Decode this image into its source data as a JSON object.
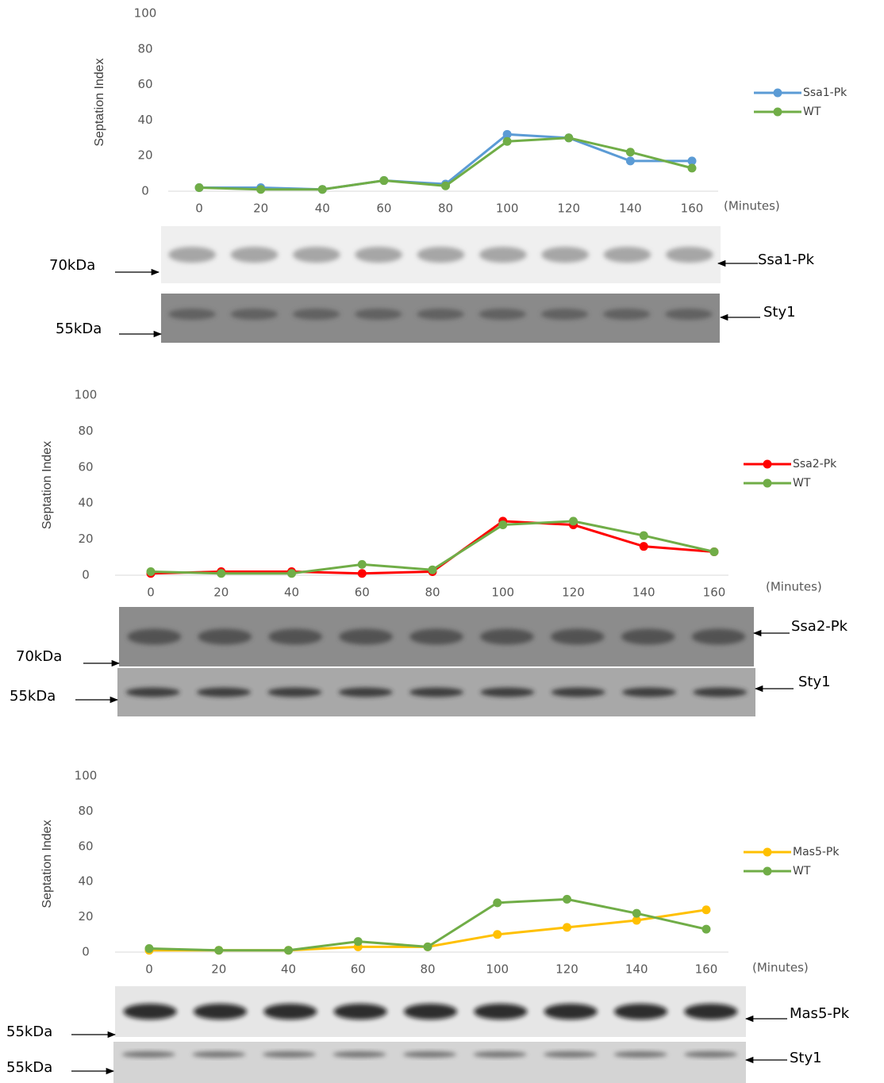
{
  "chart_data": [
    {
      "type": "line",
      "y_label": "Septation Index",
      "x_label": "(Minutes)",
      "categories": [
        "0",
        "20",
        "40",
        "60",
        "80",
        "100",
        "120",
        "140",
        "160"
      ],
      "ylim": [
        0,
        100
      ],
      "yticks": [
        0,
        20,
        40,
        60,
        80,
        100
      ],
      "series": [
        {
          "name": "Ssa1-Pk",
          "color": "#5b9bd5",
          "values": [
            2,
            2,
            1,
            6,
            4,
            32,
            30,
            17,
            17
          ]
        },
        {
          "name": "WT",
          "color": "#70ad47",
          "values": [
            2,
            1,
            1,
            6,
            3,
            28,
            30,
            22,
            13
          ]
        }
      ],
      "annotations": [
        "70kDa",
        "Ssa1-Pk",
        "55kDa",
        "Sty1"
      ]
    },
    {
      "type": "line",
      "y_label": "Septation Index",
      "x_label": "(Minutes)",
      "categories": [
        "0",
        "20",
        "40",
        "60",
        "80",
        "100",
        "120",
        "140",
        "160"
      ],
      "ylim": [
        0,
        100
      ],
      "yticks": [
        0,
        20,
        40,
        60,
        80,
        100
      ],
      "series": [
        {
          "name": "Ssa2-Pk",
          "color": "#ff0000",
          "values": [
            1,
            2,
            2,
            1,
            2,
            30,
            28,
            16,
            13
          ]
        },
        {
          "name": "WT",
          "color": "#70ad47",
          "values": [
            2,
            1,
            1,
            6,
            3,
            28,
            30,
            22,
            13
          ]
        }
      ],
      "annotations": [
        "70kDa",
        "Ssa2-Pk",
        "55kDa",
        "Sty1"
      ]
    },
    {
      "type": "line",
      "y_label": "Septation Index",
      "x_label": "(Minutes)",
      "categories": [
        "0",
        "20",
        "40",
        "60",
        "80",
        "100",
        "120",
        "140",
        "160"
      ],
      "ylim": [
        0,
        100
      ],
      "yticks": [
        0,
        20,
        40,
        60,
        80,
        100
      ],
      "series": [
        {
          "name": "Mas5-Pk",
          "color": "#ffc000",
          "values": [
            1,
            1,
            1,
            3,
            3,
            10,
            14,
            18,
            24
          ]
        },
        {
          "name": "WT",
          "color": "#70ad47",
          "values": [
            2,
            1,
            1,
            6,
            3,
            28,
            30,
            22,
            13
          ]
        }
      ],
      "annotations": [
        "55kDa",
        "Mas5-Pk",
        "55kDa",
        "Sty1"
      ]
    }
  ]
}
